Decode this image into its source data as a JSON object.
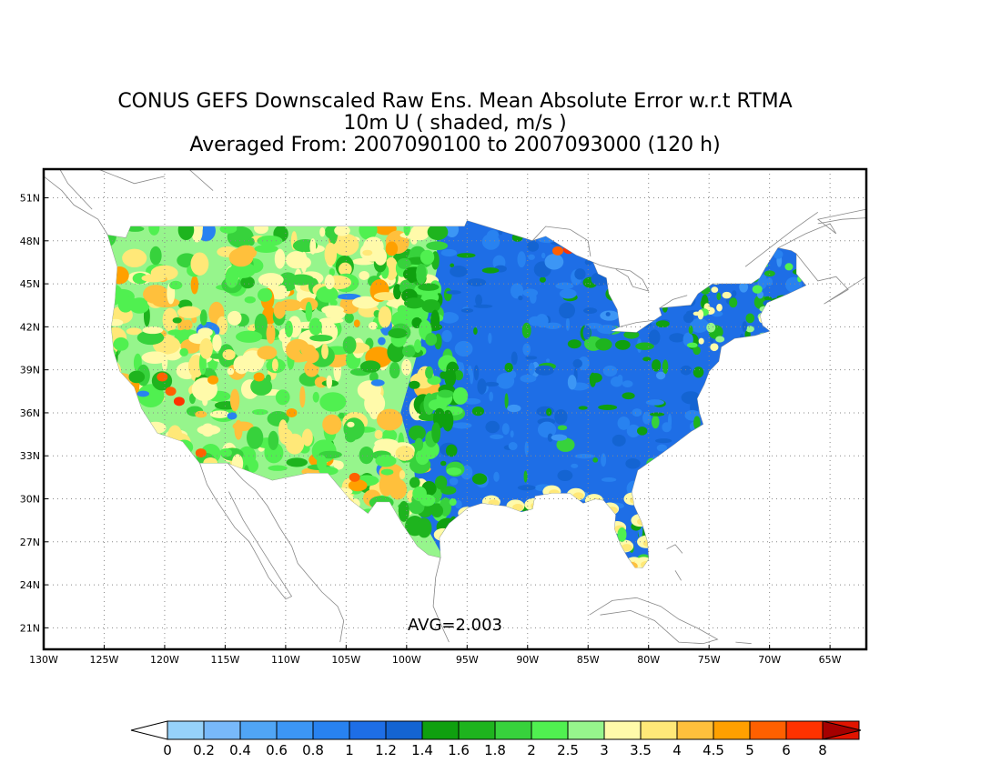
{
  "title": {
    "line1": "CONUS GEFS Downscaled Raw Ens. Mean Absolute Error w.r.t RTMA",
    "line2": "10m U ( shaded, m/s )",
    "line3": "Averaged From: 2007090100 to 2007093000 (120 h)"
  },
  "map": {
    "lon_range": [
      -130,
      -62
    ],
    "lat_range": [
      19.5,
      53
    ],
    "lon_ticks": [
      "130W",
      "125W",
      "120W",
      "115W",
      "110W",
      "105W",
      "100W",
      "95W",
      "90W",
      "85W",
      "80W",
      "75W",
      "70W",
      "65W"
    ],
    "lat_ticks": [
      "21N",
      "24N",
      "27N",
      "30N",
      "33N",
      "36N",
      "39N",
      "42N",
      "45N",
      "48N",
      "51N"
    ],
    "grid": true,
    "avg_label": "AVG=2.003"
  },
  "colorbar": {
    "labels": [
      "0",
      "0.2",
      "0.4",
      "0.6",
      "0.8",
      "1",
      "1.2",
      "1.4",
      "1.6",
      "1.8",
      "2",
      "2.5",
      "3",
      "3.5",
      "4",
      "4.5",
      "5",
      "6",
      "8"
    ],
    "colors": [
      "#96d2fa",
      "#78b9fa",
      "#50a5f5",
      "#3c96f5",
      "#2882f0",
      "#1e6ee6",
      "#1464d2",
      "#0fa00f",
      "#1eb41e",
      "#37d23c",
      "#50f050",
      "#96f58c",
      "#fffaaa",
      "#ffe878",
      "#ffc03c",
      "#ffa000",
      "#ff6000",
      "#ff3200",
      "#e11400"
    ],
    "under_color": "#ffffff",
    "over_color": "#a50000"
  },
  "regions": [
    {
      "name": "west-base",
      "color": "#96f58c"
    },
    {
      "name": "east-base",
      "color": "#1e6ee6"
    }
  ]
}
